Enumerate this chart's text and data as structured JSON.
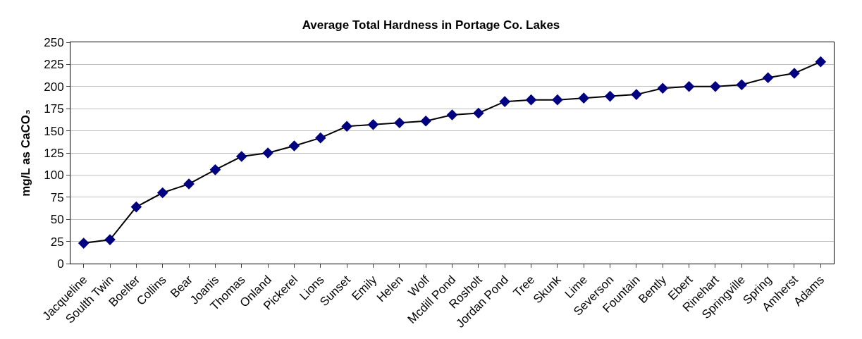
{
  "chart_data": {
    "type": "line",
    "title": "Average Total Hardness in Portage Co. Lakes",
    "ylabel": "mg/L as CaCO₃",
    "categories": [
      "Jacqueline",
      "Soulth Twin",
      "Boelter",
      "Collins",
      "Bear",
      "Joanis",
      "Thomas",
      "Onland",
      "Pickerel",
      "Lions",
      "Sunset",
      "Emily",
      "Helen",
      "Wolf",
      "Mcdill Pond",
      "Rosholt",
      "Jordan Pond",
      "Tree",
      "Skunk",
      "Lime",
      "Severson",
      "Fountain",
      "Bently",
      "Ebert",
      "Rinehart",
      "Springville",
      "Spring",
      "Amherst",
      "Adams"
    ],
    "series": [
      {
        "color": "#000080",
        "values": [
          23,
          27,
          64,
          80,
          90,
          106,
          121,
          125,
          133,
          142,
          155,
          157,
          159,
          161,
          168,
          170,
          183,
          185,
          185,
          187,
          189,
          191,
          198,
          200,
          200,
          202,
          210,
          215,
          228
        ]
      }
    ],
    "ylim": [
      0,
      250
    ],
    "yticks": [
      0,
      25,
      50,
      75,
      100,
      125,
      150,
      175,
      200,
      225,
      250
    ],
    "grid": "y",
    "legend": false,
    "marker": "diamond",
    "line_style": "solid"
  }
}
